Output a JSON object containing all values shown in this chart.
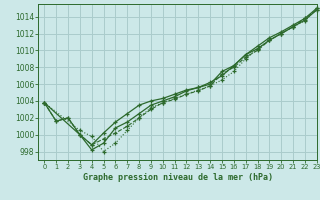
{
  "title": "Graphe pression niveau de la mer (hPa)",
  "bg_color": "#cce8e8",
  "grid_color": "#aacccc",
  "line_color": "#2d6a2d",
  "xlim": [
    -0.5,
    23
  ],
  "ylim": [
    997.0,
    1015.5
  ],
  "yticks": [
    998,
    1000,
    1002,
    1004,
    1006,
    1008,
    1010,
    1012,
    1014
  ],
  "xticks": [
    0,
    1,
    2,
    3,
    4,
    5,
    6,
    7,
    8,
    9,
    10,
    11,
    12,
    13,
    14,
    15,
    16,
    17,
    18,
    19,
    20,
    21,
    22,
    23
  ],
  "series1_x": [
    0,
    1,
    2,
    3,
    4,
    5,
    6,
    7,
    8,
    9,
    10,
    11,
    12,
    13,
    14,
    15,
    16,
    17,
    18,
    19,
    20,
    21,
    22,
    23
  ],
  "series1_y": [
    1003.8,
    1001.6,
    1002.0,
    1000.0,
    998.8,
    999.5,
    1000.2,
    1001.0,
    1002.0,
    1003.0,
    1003.8,
    1004.2,
    1004.8,
    1005.2,
    1005.8,
    1007.2,
    1008.0,
    1009.2,
    1010.0,
    1011.2,
    1012.0,
    1012.8,
    1013.8,
    1014.8
  ],
  "series2_x": [
    0,
    1,
    2,
    3,
    4,
    5,
    6,
    7,
    8,
    9,
    10,
    11,
    12,
    13,
    14,
    15,
    16,
    17,
    18,
    19,
    20,
    21,
    22,
    23
  ],
  "series2_y": [
    1003.8,
    1001.6,
    1002.0,
    1000.0,
    998.8,
    1000.2,
    1001.5,
    1002.5,
    1003.5,
    1004.0,
    1004.3,
    1004.8,
    1005.3,
    1005.6,
    1006.0,
    1007.5,
    1008.2,
    1009.5,
    1010.2,
    1011.2,
    1012.0,
    1012.8,
    1013.6,
    1014.8
  ],
  "series3_x": [
    0,
    3,
    4,
    5,
    6,
    7,
    8,
    9,
    10,
    11,
    12,
    13,
    14,
    15,
    16,
    17,
    18,
    19,
    20,
    21,
    22,
    23
  ],
  "series3_y": [
    1003.8,
    1000.0,
    998.2,
    999.0,
    1000.8,
    1001.5,
    1002.5,
    1003.5,
    1004.0,
    1004.5,
    1005.2,
    1005.6,
    1006.2,
    1007.0,
    1008.2,
    1009.5,
    1010.5,
    1011.5,
    1012.2,
    1013.0,
    1013.8,
    1015.0
  ],
  "series4_x": [
    0,
    3,
    4,
    5,
    6,
    7,
    8,
    9,
    10,
    11,
    12,
    13,
    14,
    15,
    16,
    17,
    18,
    19,
    20,
    21,
    22,
    23
  ],
  "series4_y": [
    1003.8,
    1000.5,
    999.8,
    998.0,
    999.0,
    1000.5,
    1002.0,
    1003.2,
    1003.8,
    1004.3,
    1004.8,
    1005.3,
    1005.8,
    1006.5,
    1007.5,
    1009.0,
    1010.2,
    1011.2,
    1012.0,
    1012.8,
    1013.5,
    1015.0
  ]
}
